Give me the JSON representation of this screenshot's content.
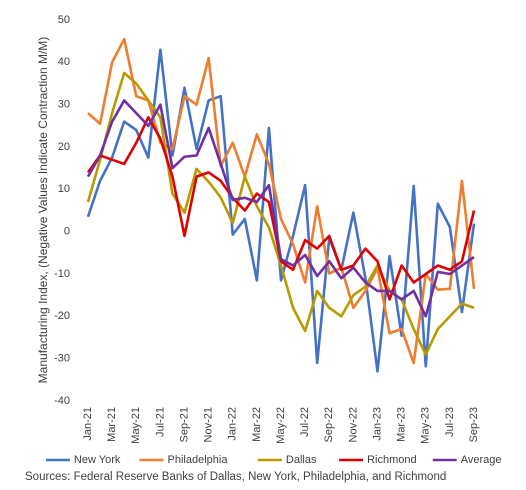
{
  "chart_data": {
    "type": "line",
    "y_label": "Manufacturing Index, (Negative Values Indicate Contraction M/M)",
    "source": "Sources: Federal Reserve Banks of Dallas, New York, Philadelphia, and Richmond",
    "categories": [
      "Jan-21",
      null,
      "Mar-21",
      null,
      "May-21",
      null,
      "Jul-21",
      null,
      "Sep-21",
      null,
      "Nov-21",
      null,
      "Jan-22",
      null,
      "Mar-22",
      null,
      "May-22",
      null,
      "Jul-22",
      null,
      "Sep-22",
      null,
      "Nov-22",
      null,
      "Jan-23",
      null,
      "Mar-23",
      null,
      "May-23",
      null,
      "Jul-23",
      null,
      "Sep-23"
    ],
    "ylim": [
      -40,
      50
    ],
    "yticks": [
      -40,
      -30,
      -20,
      -10,
      0,
      10,
      20,
      30,
      40,
      50
    ],
    "legend": "bottom",
    "series": [
      {
        "name": "New York",
        "color": "#4472c4",
        "values": [
          3.5,
          12,
          17.5,
          26,
          24,
          17.5,
          43,
          18,
          34,
          19.5,
          31,
          32,
          -0.7,
          3,
          -11.5,
          24.5,
          -11.5,
          -1,
          11,
          -31,
          -1.5,
          -9,
          4.5,
          -11,
          -33,
          -5.8,
          -24.6,
          10.8,
          -31.8,
          6.6,
          1.1,
          -19,
          1.9
        ]
      },
      {
        "name": "Philadelphia",
        "color": "#ed7d31",
        "values": [
          28,
          25.5,
          40,
          45.5,
          32,
          31,
          21,
          19.5,
          32,
          30,
          41,
          15.5,
          21,
          13,
          23,
          16,
          3,
          -3,
          -12,
          6,
          -9.9,
          -8.5,
          -18,
          -14,
          -8.6,
          -24,
          -23,
          -31,
          -10,
          -13.7,
          -13.5,
          12,
          -13.5
        ]
      },
      {
        "name": "Dallas",
        "color": "#b99a00",
        "values": [
          7,
          17,
          28,
          37.5,
          35,
          31,
          27,
          9,
          4.5,
          14.8,
          11.8,
          8.1,
          2,
          13,
          6,
          1,
          -8,
          -18,
          -23.5,
          -14,
          -18,
          -20,
          -15,
          -13,
          -8,
          -14,
          -16,
          -23,
          -29,
          -23,
          -20,
          -17,
          -18
        ]
      },
      {
        "name": "Richmond",
        "color": "#e00000",
        "values": [
          14,
          18,
          17,
          16,
          21,
          27,
          22,
          13,
          -1,
          13,
          14,
          12,
          8,
          5,
          9,
          7,
          -7,
          -9,
          -2,
          -4,
          -1,
          -9,
          -8,
          -4,
          -7,
          -16,
          -8,
          -12,
          -10,
          -8,
          -9,
          -7,
          5
        ]
      },
      {
        "name": "Average",
        "color": "#7030a0",
        "values": [
          13,
          18,
          26,
          31,
          28,
          25,
          30,
          15,
          17.7,
          18,
          24.5,
          16,
          7.5,
          8,
          7,
          11,
          -6.5,
          -8,
          -5.5,
          -10.5,
          -7,
          -11,
          -8.5,
          -12,
          -14,
          -14,
          -16,
          -14,
          -20,
          -9.5,
          -10,
          -8,
          -6
        ]
      }
    ]
  }
}
